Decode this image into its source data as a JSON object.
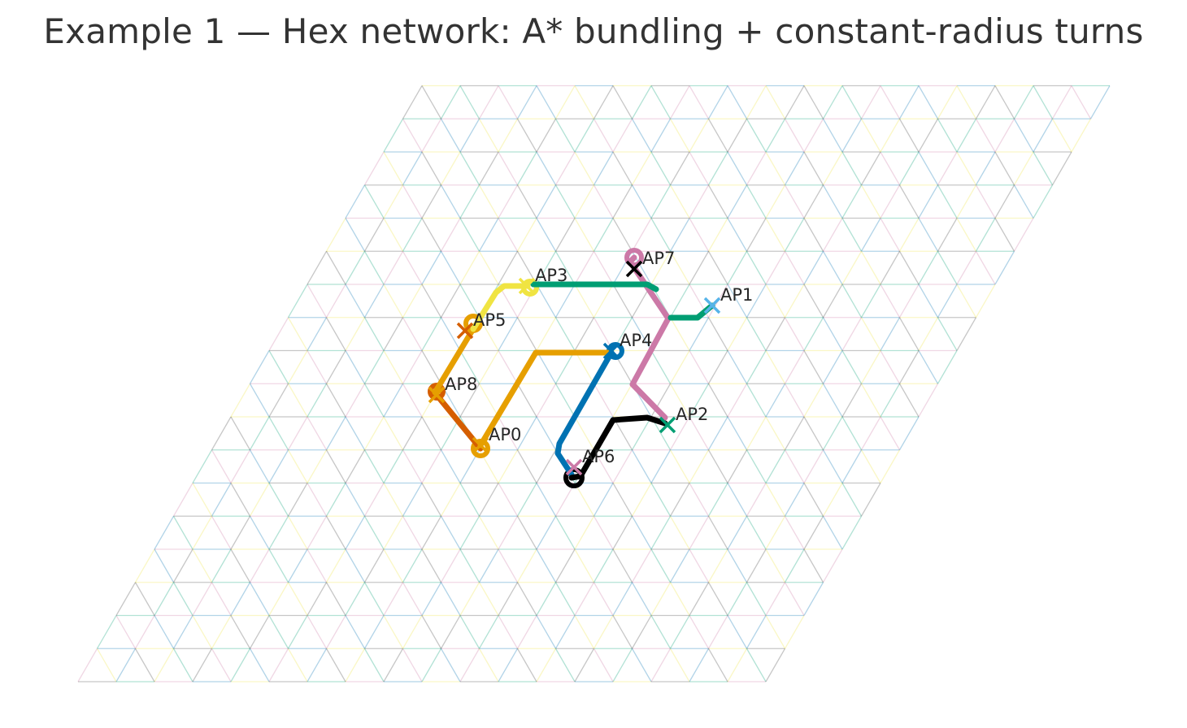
{
  "title": "Example 1 — Hex network: A* bundling + constant-radius turns",
  "colors": {
    "blue": "#0072b2",
    "orange": "#e69f00",
    "green": "#009e73",
    "yellow": "#f0e442",
    "skyblue": "#56b4e9",
    "vermillion": "#d55e00",
    "pink": "#cc79a7",
    "black": "#000000",
    "grid": [
      "#000000",
      "#0072b2",
      "#e69f00",
      "#009e73",
      "#f0e442",
      "#56b4e9",
      "#cc79a7",
      "#d55e00"
    ]
  },
  "access_points": [
    {
      "id": "AP0",
      "color": "#e69f00"
    },
    {
      "id": "AP1",
      "color": "#56b4e9"
    },
    {
      "id": "AP2",
      "color": "#009e73"
    },
    {
      "id": "AP3",
      "color": "#f0e442"
    },
    {
      "id": "AP4",
      "color": "#0072b2"
    },
    {
      "id": "AP5",
      "color": "#d55e00"
    },
    {
      "id": "AP6",
      "color": "#cc79a7"
    },
    {
      "id": "AP7",
      "color": "#000000"
    },
    {
      "id": "AP8",
      "color": "#e69f00"
    }
  ],
  "routes": [
    {
      "from": "AP3",
      "to": "AP1",
      "color": "#009e73"
    },
    {
      "from": "AP7",
      "to": "AP2",
      "color": "#cc79a7"
    },
    {
      "from": "AP5",
      "to": "AP3",
      "color": "#f0e442"
    },
    {
      "from": "AP0",
      "to": "AP5",
      "color": "#e69f00"
    },
    {
      "from": "AP8",
      "to": "AP0",
      "color": "#d55e00"
    },
    {
      "from": "AP0",
      "to": "AP4",
      "color": "#e69f00"
    },
    {
      "from": "AP6",
      "to": "AP4",
      "color": "#0072b2"
    },
    {
      "from": "AP6",
      "to": "AP2",
      "color": "#000000"
    }
  ]
}
